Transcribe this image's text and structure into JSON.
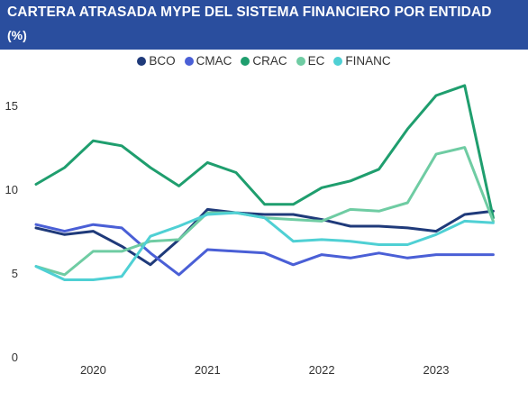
{
  "header": {
    "title": "CARTERA ATRASADA MYPE DEL SISTEMA FINANCIERO POR ENTIDAD",
    "subtitle": "(%)"
  },
  "chart_data": {
    "type": "line",
    "title": "CARTERA ATRASADA MYPE DEL SISTEMA FINANCIERO POR ENTIDAD",
    "subtitle": "(%)",
    "ylim": [
      0,
      17
    ],
    "yticks": [
      0,
      5,
      10,
      15
    ],
    "ytick_labels": [
      "0",
      "5",
      "10",
      "15"
    ],
    "xticks": [
      2020,
      2021,
      2022,
      2023
    ],
    "xtick_labels": [
      "2020",
      "2021",
      "2022",
      "2023"
    ],
    "xlim": [
      2019.75,
      2023.92
    ],
    "grid": false,
    "legend_position": "top-center",
    "x": [
      2019.75,
      2020.0,
      2020.25,
      2020.5,
      2020.75,
      2021.0,
      2021.25,
      2021.5,
      2021.75,
      2022.0,
      2022.25,
      2022.5,
      2022.75,
      2023.0,
      2023.25,
      2023.5,
      2023.75
    ],
    "series": [
      {
        "name": "BCO",
        "color": "#1f3a7a",
        "values": [
          7.7,
          7.3,
          7.5,
          6.6,
          5.5,
          7.0,
          8.8,
          8.6,
          8.5,
          8.5,
          8.2,
          7.8,
          7.8,
          7.7,
          7.5,
          8.5,
          8.7
        ]
      },
      {
        "name": "CMAC",
        "color": "#4a5fd6",
        "values": [
          7.9,
          7.5,
          7.9,
          7.7,
          6.2,
          4.9,
          6.4,
          6.3,
          6.2,
          5.5,
          6.1,
          5.9,
          6.2,
          5.9,
          6.1,
          6.1,
          6.1
        ]
      },
      {
        "name": "CRAC",
        "color": "#1f9e6e",
        "values": [
          10.3,
          11.3,
          12.9,
          12.6,
          11.3,
          10.2,
          11.6,
          11.0,
          9.1,
          9.1,
          10.1,
          10.5,
          11.2,
          13.6,
          15.6,
          16.2,
          8.3
        ]
      },
      {
        "name": "EC",
        "color": "#6fcca3",
        "values": [
          5.4,
          4.9,
          6.3,
          6.3,
          6.9,
          7.0,
          8.6,
          8.6,
          8.3,
          8.2,
          8.1,
          8.8,
          8.7,
          9.2,
          12.1,
          12.5,
          8.1
        ]
      },
      {
        "name": "FINANC",
        "color": "#4fd0d4",
        "values": [
          5.4,
          4.6,
          4.6,
          4.8,
          7.2,
          7.8,
          8.5,
          8.6,
          8.3,
          6.9,
          7.0,
          6.9,
          6.7,
          6.7,
          7.3,
          8.1,
          8.0
        ]
      }
    ]
  }
}
